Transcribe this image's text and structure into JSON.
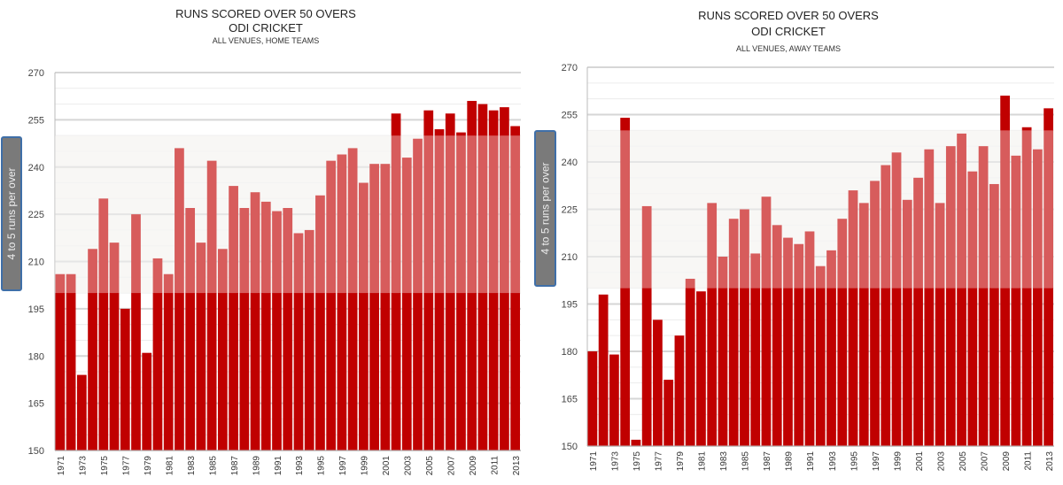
{
  "chart_data": [
    {
      "type": "bar",
      "title": "RUNS SCORED OVER 50 OVERS",
      "subtitle": "ODI CRICKET",
      "subtitle2": "ALL VENUES, HOME TEAMS",
      "band_label": "4 to 5 runs per over",
      "band": [
        200,
        250
      ],
      "ylim": [
        150,
        270
      ],
      "yticks": [
        150,
        165,
        180,
        195,
        210,
        225,
        240,
        255,
        270
      ],
      "grid": true,
      "categories": [
        1971,
        1972,
        1973,
        1974,
        1975,
        1976,
        1977,
        1978,
        1979,
        1980,
        1981,
        1982,
        1983,
        1984,
        1985,
        1986,
        1987,
        1988,
        1989,
        1990,
        1991,
        1992,
        1993,
        1994,
        1995,
        1996,
        1997,
        1998,
        1999,
        2000,
        2001,
        2002,
        2003,
        2004,
        2005,
        2006,
        2007,
        2008,
        2009,
        2010,
        2011,
        2012,
        2013
      ],
      "values": [
        206,
        206,
        174,
        214,
        230,
        216,
        195,
        225,
        181,
        211,
        206,
        246,
        227,
        216,
        242,
        214,
        234,
        227,
        232,
        229,
        226,
        227,
        219,
        220,
        231,
        242,
        244,
        246,
        235,
        241,
        241,
        257,
        243,
        249,
        258,
        252,
        257,
        251,
        261,
        260,
        258,
        259,
        253
      ]
    },
    {
      "type": "bar",
      "title": "RUNS SCORED OVER 50 OVERS",
      "subtitle": "ODI CRICKET",
      "subtitle2": "ALL VENUES, AWAY TEAMS",
      "band_label": "4 to 5 runs per over",
      "band": [
        200,
        250
      ],
      "ylim": [
        150,
        270
      ],
      "yticks": [
        150,
        165,
        180,
        195,
        210,
        225,
        240,
        255,
        270
      ],
      "grid": true,
      "categories": [
        1971,
        1972,
        1973,
        1974,
        1975,
        1976,
        1977,
        1978,
        1979,
        1980,
        1981,
        1982,
        1983,
        1984,
        1985,
        1986,
        1987,
        1988,
        1989,
        1990,
        1991,
        1992,
        1993,
        1994,
        1995,
        1996,
        1997,
        1998,
        1999,
        2000,
        2001,
        2002,
        2003,
        2004,
        2005,
        2006,
        2007,
        2008,
        2009,
        2010,
        2011,
        2012,
        2013
      ],
      "values": [
        180,
        198,
        179,
        254,
        152,
        226,
        190,
        171,
        185,
        203,
        199,
        227,
        210,
        222,
        225,
        211,
        229,
        220,
        216,
        214,
        218,
        207,
        212,
        222,
        231,
        227,
        234,
        239,
        243,
        228,
        235,
        244,
        227,
        245,
        249,
        237,
        245,
        233,
        261,
        242,
        251,
        244,
        257
      ]
    }
  ],
  "colors": {
    "bar": "#c00000",
    "band_bg": "#f5f3ef",
    "band_box": "#7a7a7a",
    "band_box_border": "#3f6fa8"
  }
}
